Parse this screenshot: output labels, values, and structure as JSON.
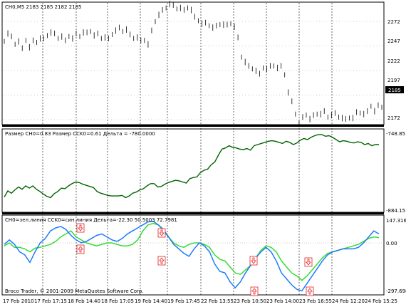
{
  "main": {
    "header": "CH0,M5  2183 2185 2182 2185",
    "price_labels": [
      "2272",
      "2247",
      "2222",
      "2197",
      "2172"
    ],
    "current_price": "2185"
  },
  "panel2": {
    "header": "Размер CH0=0.83  Размер CCK0=0.61  Дельта = -780.0000",
    "labels": [
      "-748.85",
      "-884.15"
    ]
  },
  "panel3": {
    "header": "CH0=зел.линия  CCK0=син.линия Дельта=-22.30     50.5003 72.7981",
    "labels": [
      "147.316",
      "0.00",
      "-297.698"
    ],
    "copyright": "Broco Trader, © 2001-2009 MetaQuotes Software Corp."
  },
  "time_labels": [
    "17 Feb 2010",
    "17 Feb 17:15",
    "18 Feb 14:40",
    "18 Feb 17:05",
    "19 Feb 14:40",
    "19 Feb 17:45",
    "22 Feb 13:55",
    "23 Feb 10:50",
    "23 Feb 14:00",
    "23 Feb 16:55",
    "24 Feb 12:20",
    "24 Feb 15:25"
  ],
  "colors": {
    "price": "#000000",
    "spread": "#006400",
    "green_line": "#33dd33",
    "blue_line": "#1e7aff",
    "arrow": "#e02020"
  },
  "chart_data": [
    {
      "type": "line",
      "title": "",
      "series": [
        {
          "name": "",
          "values": [
            2252,
            2260,
            2256,
            2249,
            2252,
            2244,
            2253,
            2246,
            2252,
            2251,
            2255,
            2254,
            2258,
            2261,
            2259,
            2255,
            2257,
            2252,
            2257,
            2255,
            2259,
            2257,
            2261,
            2260,
            2262,
            2258,
            2259,
            2255,
            2256,
            2254,
            2259,
            2263,
            2265,
            2262,
            2264,
            2258,
            2255,
            2256,
            2252,
            2253,
            2249,
            2262,
            2272,
            2279,
            2283,
            2286,
            2290,
            2288,
            2285,
            2286,
            2283,
            2286,
            2284,
            2276,
            2273,
            2270,
            2270,
            2268,
            2266,
            2267,
            2269,
            2269,
            2268,
            2270,
            2267,
            2255,
            2236,
            2231,
            2226,
            2224,
            2222,
            2218,
            2225,
            2224,
            2226,
            2227,
            2225,
            2226,
            2218,
            2200,
            2190,
            2178,
            2168,
            2174,
            2177,
            2173,
            2176,
            2178,
            2178,
            2180,
            2175,
            2177,
            2178,
            2175,
            2174,
            2172,
            2174,
            2174,
            2179,
            2179,
            2178,
            2180,
            2186,
            2181,
            2186,
            2185
          ]
        }
      ]
    },
    {
      "type": "line",
      "title": "",
      "series": [
        {
          "name": "",
          "values": [
            -862,
            -851,
            -855,
            -849,
            -844,
            -848,
            -842,
            -846,
            -842,
            -848,
            -852,
            -857,
            -861,
            -863,
            -856,
            -852,
            -846,
            -847,
            -842,
            -838,
            -835,
            -836,
            -839,
            -841,
            -843,
            -845,
            -852,
            -855,
            -857,
            -859,
            -860,
            -860,
            -860,
            -859,
            -863,
            -860,
            -855,
            -853,
            -849,
            -847,
            -842,
            -838,
            -838,
            -844,
            -843,
            -839,
            -836,
            -834,
            -832,
            -833,
            -835,
            -837,
            -829,
            -827,
            -826,
            -818,
            -814,
            -812,
            -804,
            -799,
            -787,
            -776,
            -774,
            -770,
            -773,
            -774,
            -776,
            -777,
            -775,
            -778,
            -770,
            -768,
            -766,
            -764,
            -762,
            -761,
            -762,
            -764,
            -766,
            -762,
            -764,
            -768,
            -765,
            -760,
            -757,
            -759,
            -755,
            -752,
            -750,
            -750,
            -753,
            -752,
            -755,
            -759,
            -763,
            -761,
            -762,
            -764,
            -765,
            -763,
            -764,
            -768,
            -766,
            -770,
            -768,
            -768
          ]
        }
      ]
    },
    {
      "type": "line",
      "title": "",
      "series": [
        {
          "name": "CH0",
          "values": [
            -20,
            0,
            -30,
            -30,
            -40,
            -60,
            -35,
            -30,
            -20,
            -10,
            10,
            40,
            60,
            80,
            40,
            20,
            0,
            -10,
            -20,
            -10,
            0,
            0,
            -10,
            -20,
            -20,
            -10,
            20,
            80,
            120,
            130,
            120,
            80,
            40,
            0,
            -20,
            -30,
            -10,
            0,
            0,
            -10,
            -30,
            -80,
            -110,
            -120,
            -160,
            -200,
            -210,
            -180,
            -150,
            -100,
            -50,
            -20,
            -30,
            -60,
            -120,
            -160,
            -200,
            -220,
            -250,
            -220,
            -180,
            -140,
            -100,
            -70,
            -60,
            -50,
            -40,
            -30,
            -20,
            -10,
            10,
            30,
            40,
            35
          ]
        },
        {
          "name": "CCK0",
          "values": [
            -10,
            20,
            -10,
            -60,
            -80,
            -130,
            -60,
            0,
            30,
            80,
            100,
            110,
            90,
            50,
            20,
            0,
            10,
            30,
            50,
            60,
            40,
            20,
            10,
            30,
            60,
            80,
            100,
            120,
            140,
            145,
            120,
            90,
            40,
            -10,
            -40,
            -70,
            -90,
            -40,
            0,
            -20,
            -60,
            -140,
            -190,
            -200,
            -260,
            -300,
            -260,
            -200,
            -150,
            -100,
            -60,
            -30,
            -60,
            -120,
            -200,
            -240,
            -280,
            -310,
            -320,
            -270,
            -220,
            -170,
            -120,
            -80,
            -60,
            -50,
            -40,
            -40,
            -40,
            -30,
            0,
            40,
            80,
            60
          ]
        }
      ]
    }
  ]
}
